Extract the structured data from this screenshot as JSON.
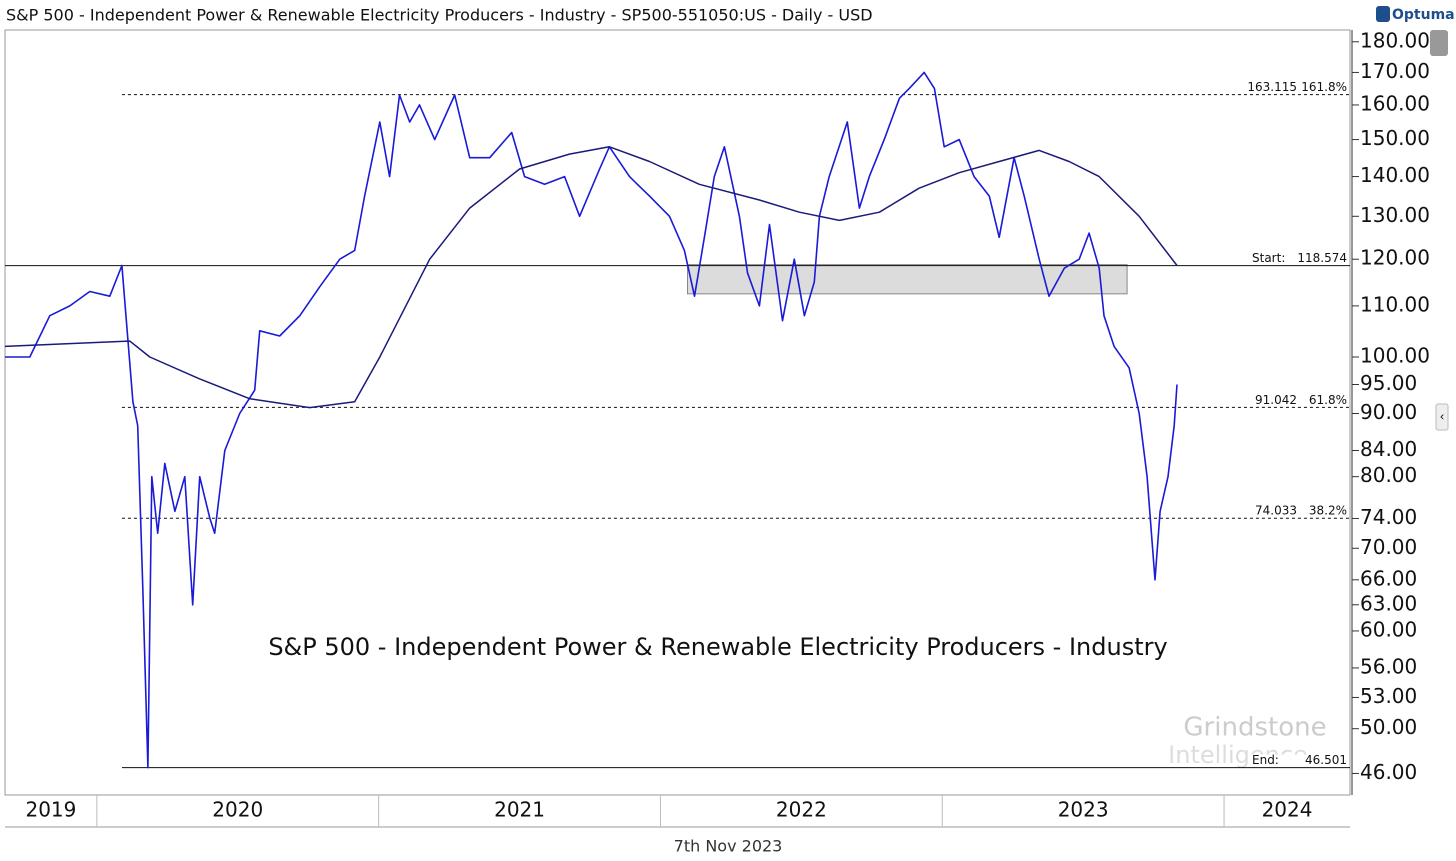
{
  "chart_data": {
    "type": "line",
    "title": "S&P 500 - Independent Power & Renewable Electricity Producers - Industry - SP500-551050:US - Daily - USD",
    "logo": "Optuma",
    "annotation": "S&P 500 - Independent Power & Renewable Electricity Producers - Industry",
    "watermark": [
      "Grindstone",
      "Intelligence"
    ],
    "date_label": "7th Nov 2023",
    "log_scale": true,
    "xlim": [
      2019.674,
      2024.447
    ],
    "xticks": [
      2020,
      2021,
      2022,
      2023,
      2024
    ],
    "year_labels": [
      2019,
      2020,
      2021,
      2022,
      2023,
      2024
    ],
    "ylim": [
      44.6,
      184
    ],
    "yticks": [
      {
        "value": 180,
        "label": "180.00"
      },
      {
        "value": 170,
        "label": "170.00"
      },
      {
        "value": 160,
        "label": "160.00"
      },
      {
        "value": 150,
        "label": "150.00"
      },
      {
        "value": 140,
        "label": "140.00"
      },
      {
        "value": 130,
        "label": "130.00"
      },
      {
        "value": 120,
        "label": "120.00"
      },
      {
        "value": 110,
        "label": "110.00"
      },
      {
        "value": 100,
        "label": "100.00"
      },
      {
        "value": 95,
        "label": "95.00"
      },
      {
        "value": 90,
        "label": "90.00"
      },
      {
        "value": 84,
        "label": "84.00"
      },
      {
        "value": 80,
        "label": "80.00"
      },
      {
        "value": 74,
        "label": "74.00"
      },
      {
        "value": 70,
        "label": "70.00"
      },
      {
        "value": 66,
        "label": "66.00"
      },
      {
        "value": 63,
        "label": "63.00"
      },
      {
        "value": 60,
        "label": "60.00"
      },
      {
        "value": 56,
        "label": "56.00"
      },
      {
        "value": 53,
        "label": "53.00"
      },
      {
        "value": 50,
        "label": "50.00"
      },
      {
        "value": 46,
        "label": "46.00"
      }
    ],
    "levels": [
      {
        "label": "161.8%",
        "value": 163.115,
        "line": "dotted",
        "start": 2020.089
      },
      {
        "label": "Start:",
        "value": 118.574,
        "line": "solid",
        "start": 2019.674
      },
      {
        "label": "61.8%",
        "value": 91.042,
        "line": "dotted",
        "start": 2020.089
      },
      {
        "label": "38.2%",
        "value": 74.033,
        "line": "dotted",
        "start": 2020.089
      },
      {
        "label": "End:",
        "value": 46.501,
        "line": "solid",
        "start": 2020.089
      }
    ],
    "zone": {
      "x": [
        2022.096,
        2023.656
      ],
      "y": [
        112.5,
        118.8
      ],
      "color": "#dcdcdc"
    },
    "series": [
      {
        "color": "#1a1ad8",
        "x": [
          2019.674,
          2019.762,
          2019.833,
          2019.904,
          2019.975,
          2020.046,
          2020.089,
          2020.128,
          2020.145,
          2020.163,
          2020.181,
          2020.195,
          2020.216,
          2020.241,
          2020.277,
          2020.312,
          2020.34,
          2020.365,
          2020.401,
          2020.418,
          2020.454,
          2020.507,
          2020.56,
          2020.578,
          2020.649,
          2020.72,
          2020.791,
          2020.862,
          2020.915,
          2020.95,
          2021.004,
          2021.039,
          2021.074,
          2021.11,
          2021.145,
          2021.199,
          2021.27,
          2021.323,
          2021.394,
          2021.472,
          2021.518,
          2021.589,
          2021.66,
          2021.713,
          2021.784,
          2021.819,
          2021.89,
          2021.961,
          2022.032,
          2022.085,
          2022.121,
          2022.156,
          2022.191,
          2022.227,
          2022.28,
          2022.309,
          2022.351,
          2022.387,
          2022.433,
          2022.475,
          2022.511,
          2022.546,
          2022.564,
          2022.599,
          2022.663,
          2022.706,
          2022.741,
          2022.794,
          2022.848,
          2022.883,
          2022.936,
          2022.972,
          2023.007,
          2023.06,
          2023.113,
          2023.167,
          2023.202,
          2023.255,
          2023.291,
          2023.344,
          2023.379,
          2023.433,
          2023.486,
          2023.521,
          2023.557,
          2023.574,
          2023.61,
          2023.663,
          2023.699,
          2023.727,
          2023.755,
          2023.773,
          2023.801,
          2023.823,
          2023.833
        ],
        "values": [
          100,
          100,
          108,
          110,
          113,
          112,
          118.6,
          92,
          88,
          65,
          46.5,
          80,
          72,
          82,
          75,
          80,
          63,
          80,
          74,
          72,
          84,
          90,
          94,
          105,
          104,
          108,
          114,
          120,
          122,
          135,
          155,
          140,
          163,
          155,
          160,
          150,
          163,
          145,
          145,
          152,
          140,
          138,
          140,
          130,
          142,
          148,
          140,
          135,
          130,
          122,
          112,
          125,
          140,
          148,
          130,
          117,
          110,
          128,
          107,
          120,
          108,
          115,
          130,
          140,
          155,
          132,
          140,
          150,
          162,
          165,
          170,
          165,
          148,
          150,
          140,
          135,
          125,
          145,
          135,
          120,
          112,
          118,
          120,
          126,
          118,
          108,
          102,
          98,
          90,
          80,
          66,
          75,
          80,
          88,
          95
        ]
      },
      {
        "color": "#1a1a7a",
        "x": [
          2019.674,
          2020.117,
          2020.188,
          2020.365,
          2020.543,
          2020.755,
          2020.915,
          2021.004,
          2021.181,
          2021.323,
          2021.5,
          2021.677,
          2021.819,
          2021.961,
          2022.138,
          2022.351,
          2022.493,
          2022.635,
          2022.777,
          2022.918,
          2023.06,
          2023.202,
          2023.344,
          2023.45,
          2023.557,
          2023.699,
          2023.833
        ],
        "values": [
          102,
          103,
          100,
          96,
          92.5,
          91,
          92,
          100,
          120,
          132,
          142,
          146,
          148,
          144,
          138,
          134,
          131,
          129,
          131,
          137,
          141,
          144,
          147,
          144,
          140,
          130,
          118.6
        ]
      }
    ]
  }
}
